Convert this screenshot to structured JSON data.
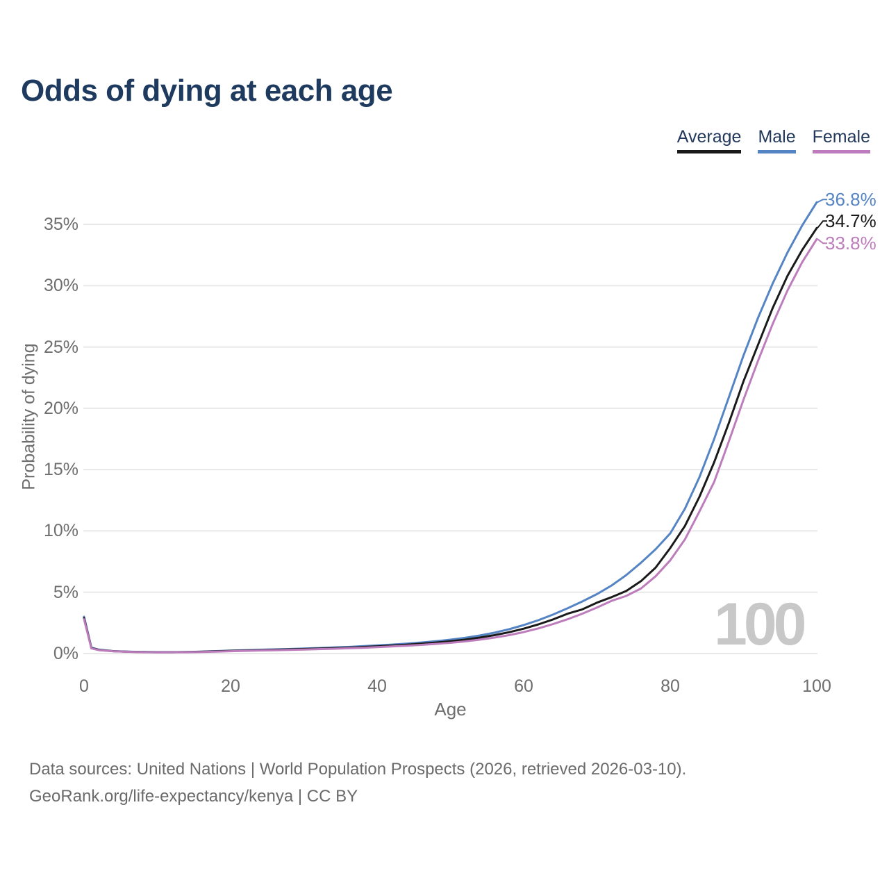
{
  "title": "Odds of dying at each age",
  "legend": [
    {
      "label": "Average",
      "color": "#1a1a1a"
    },
    {
      "label": "Male",
      "color": "#5584c4"
    },
    {
      "label": "Female",
      "color": "#bd7cbc"
    }
  ],
  "watermark": "100",
  "footer": {
    "line1": "Data sources: United Nations | World Population Prospects (2026, retrieved 2026-03-10).",
    "line2": "GeoRank.org/life-expectancy/kenya | CC BY"
  },
  "colors": {
    "title_text": "#1e3a5e",
    "legend_text": "#23395b",
    "axis_text": "#6e6e6e",
    "gridline": "#e8e8e8",
    "watermark": "#c8c8c8",
    "average_line": "#1a1a1a",
    "male_line": "#5584c4",
    "female_line": "#bd7cbc"
  },
  "chart_data": {
    "type": "line",
    "title": "Odds of dying at each age",
    "xlabel": "Age",
    "ylabel": "Probability of dying",
    "x_ticks": [
      0,
      20,
      40,
      60,
      80,
      100
    ],
    "y_ticks": [
      {
        "value": 0,
        "label": "0%"
      },
      {
        "value": 5,
        "label": "5%"
      },
      {
        "value": 10,
        "label": "10%"
      },
      {
        "value": 15,
        "label": "15%"
      },
      {
        "value": 20,
        "label": "20%"
      },
      {
        "value": 25,
        "label": "25%"
      },
      {
        "value": 30,
        "label": "30%"
      },
      {
        "value": 35,
        "label": "35%"
      }
    ],
    "xlim": [
      0,
      100
    ],
    "ylim": [
      0,
      37
    ],
    "grid": "horizontal",
    "legend_position": "top-right",
    "x": [
      0,
      1,
      2,
      4,
      6,
      8,
      10,
      12,
      14,
      16,
      18,
      20,
      22,
      24,
      26,
      28,
      30,
      32,
      34,
      36,
      38,
      40,
      42,
      44,
      46,
      48,
      50,
      52,
      54,
      56,
      58,
      60,
      62,
      64,
      66,
      68,
      70,
      72,
      74,
      76,
      78,
      80,
      82,
      84,
      86,
      88,
      90,
      92,
      94,
      96,
      98,
      100
    ],
    "series": [
      {
        "name": "Male",
        "color": "#5584c4",
        "end_label": "36.8%",
        "values": [
          3.0,
          0.48,
          0.32,
          0.2,
          0.16,
          0.13,
          0.12,
          0.12,
          0.13,
          0.16,
          0.2,
          0.24,
          0.28,
          0.31,
          0.34,
          0.37,
          0.41,
          0.45,
          0.49,
          0.54,
          0.6,
          0.66,
          0.73,
          0.81,
          0.9,
          1.0,
          1.13,
          1.28,
          1.47,
          1.7,
          1.98,
          2.32,
          2.72,
          3.18,
          3.7,
          4.25,
          4.85,
          5.55,
          6.4,
          7.4,
          8.5,
          9.8,
          11.8,
          14.4,
          17.5,
          20.9,
          24.3,
          27.4,
          30.2,
          32.7,
          34.9,
          36.8
        ]
      },
      {
        "name": "Average",
        "color": "#1a1a1a",
        "end_label": "34.7%",
        "values": [
          2.9,
          0.45,
          0.3,
          0.19,
          0.15,
          0.12,
          0.11,
          0.11,
          0.12,
          0.15,
          0.18,
          0.22,
          0.25,
          0.28,
          0.31,
          0.34,
          0.37,
          0.4,
          0.44,
          0.48,
          0.53,
          0.59,
          0.65,
          0.72,
          0.8,
          0.9,
          1.0,
          1.13,
          1.3,
          1.5,
          1.74,
          2.03,
          2.38,
          2.78,
          3.25,
          3.6,
          4.15,
          4.6,
          5.1,
          5.9,
          7.0,
          8.6,
          10.4,
          12.8,
          15.6,
          18.8,
          22.2,
          25.2,
          28.2,
          30.8,
          32.9,
          34.7
        ]
      },
      {
        "name": "Female",
        "color": "#bd7cbc",
        "end_label": "33.8%",
        "values": [
          2.8,
          0.42,
          0.28,
          0.18,
          0.14,
          0.11,
          0.1,
          0.1,
          0.11,
          0.13,
          0.16,
          0.19,
          0.22,
          0.25,
          0.27,
          0.3,
          0.33,
          0.36,
          0.39,
          0.43,
          0.47,
          0.52,
          0.58,
          0.64,
          0.71,
          0.79,
          0.88,
          0.99,
          1.13,
          1.3,
          1.5,
          1.75,
          2.05,
          2.4,
          2.8,
          3.25,
          3.75,
          4.3,
          4.7,
          5.3,
          6.3,
          7.6,
          9.3,
          11.6,
          14.0,
          17.3,
          20.7,
          23.9,
          26.9,
          29.6,
          31.9,
          33.8
        ]
      }
    ]
  }
}
